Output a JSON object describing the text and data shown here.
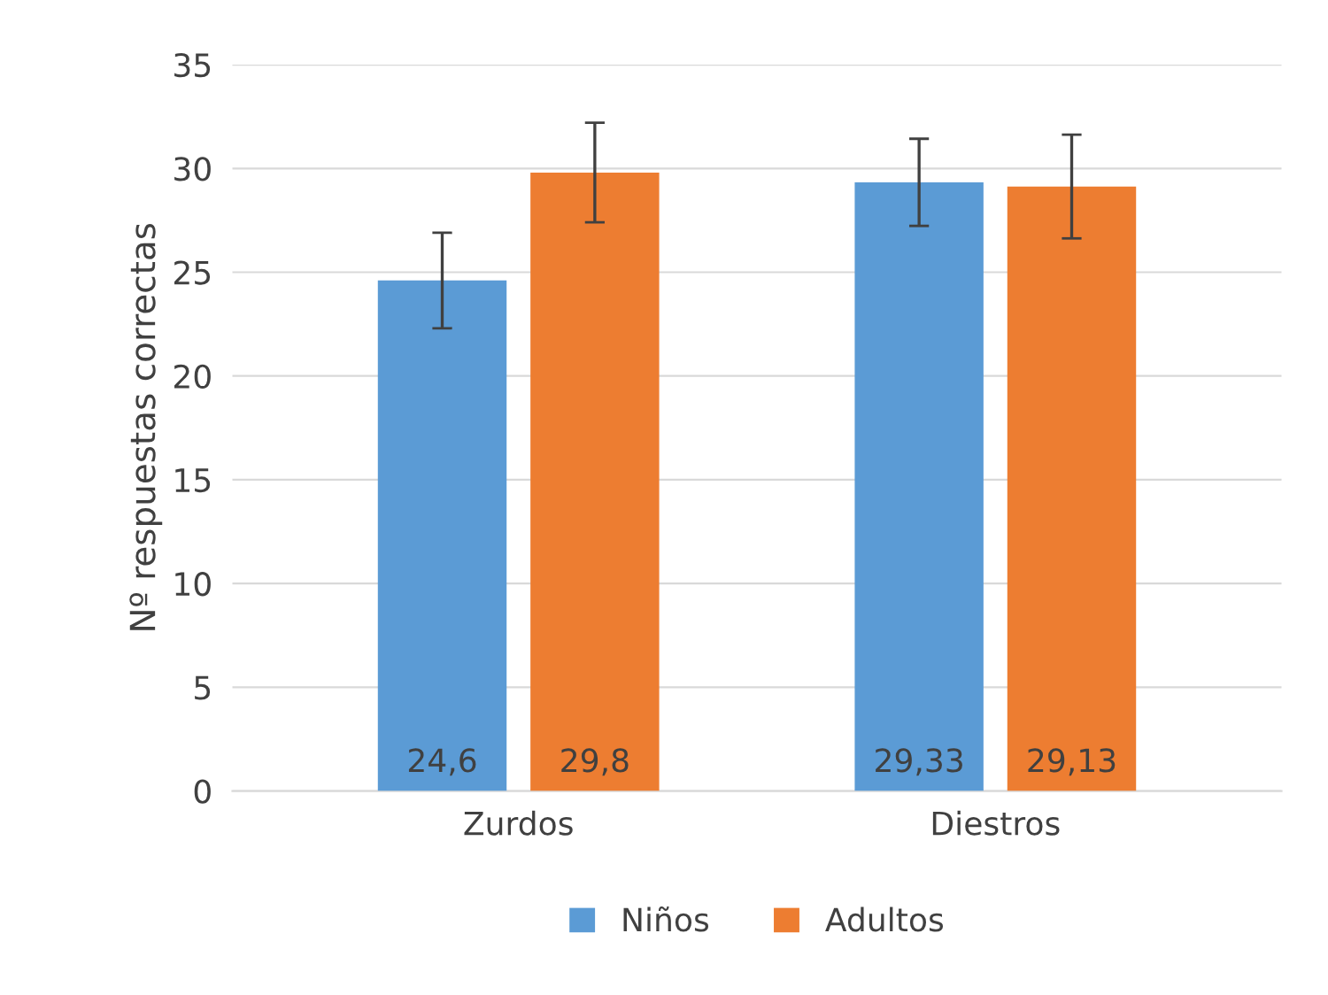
{
  "chart_data": {
    "type": "bar",
    "ylabel": "Nº respuestas correctas",
    "categories": [
      "Zurdos",
      "Diestros"
    ],
    "series": [
      {
        "name": "Niños",
        "color": "#5b9bd5",
        "values": [
          24.6,
          29.33
        ],
        "errors": [
          2.3,
          2.1
        ],
        "value_labels": [
          "24,6",
          "29,33"
        ]
      },
      {
        "name": "Adultos",
        "color": "#ed7d31",
        "values": [
          29.8,
          29.13
        ],
        "errors": [
          2.4,
          2.5
        ],
        "value_labels": [
          "29,8",
          "29,13"
        ]
      }
    ],
    "ylim": [
      0,
      35
    ],
    "yticks": [
      0,
      5,
      10,
      15,
      20,
      25,
      30,
      35
    ],
    "grid": "y",
    "legend": "bottom"
  }
}
